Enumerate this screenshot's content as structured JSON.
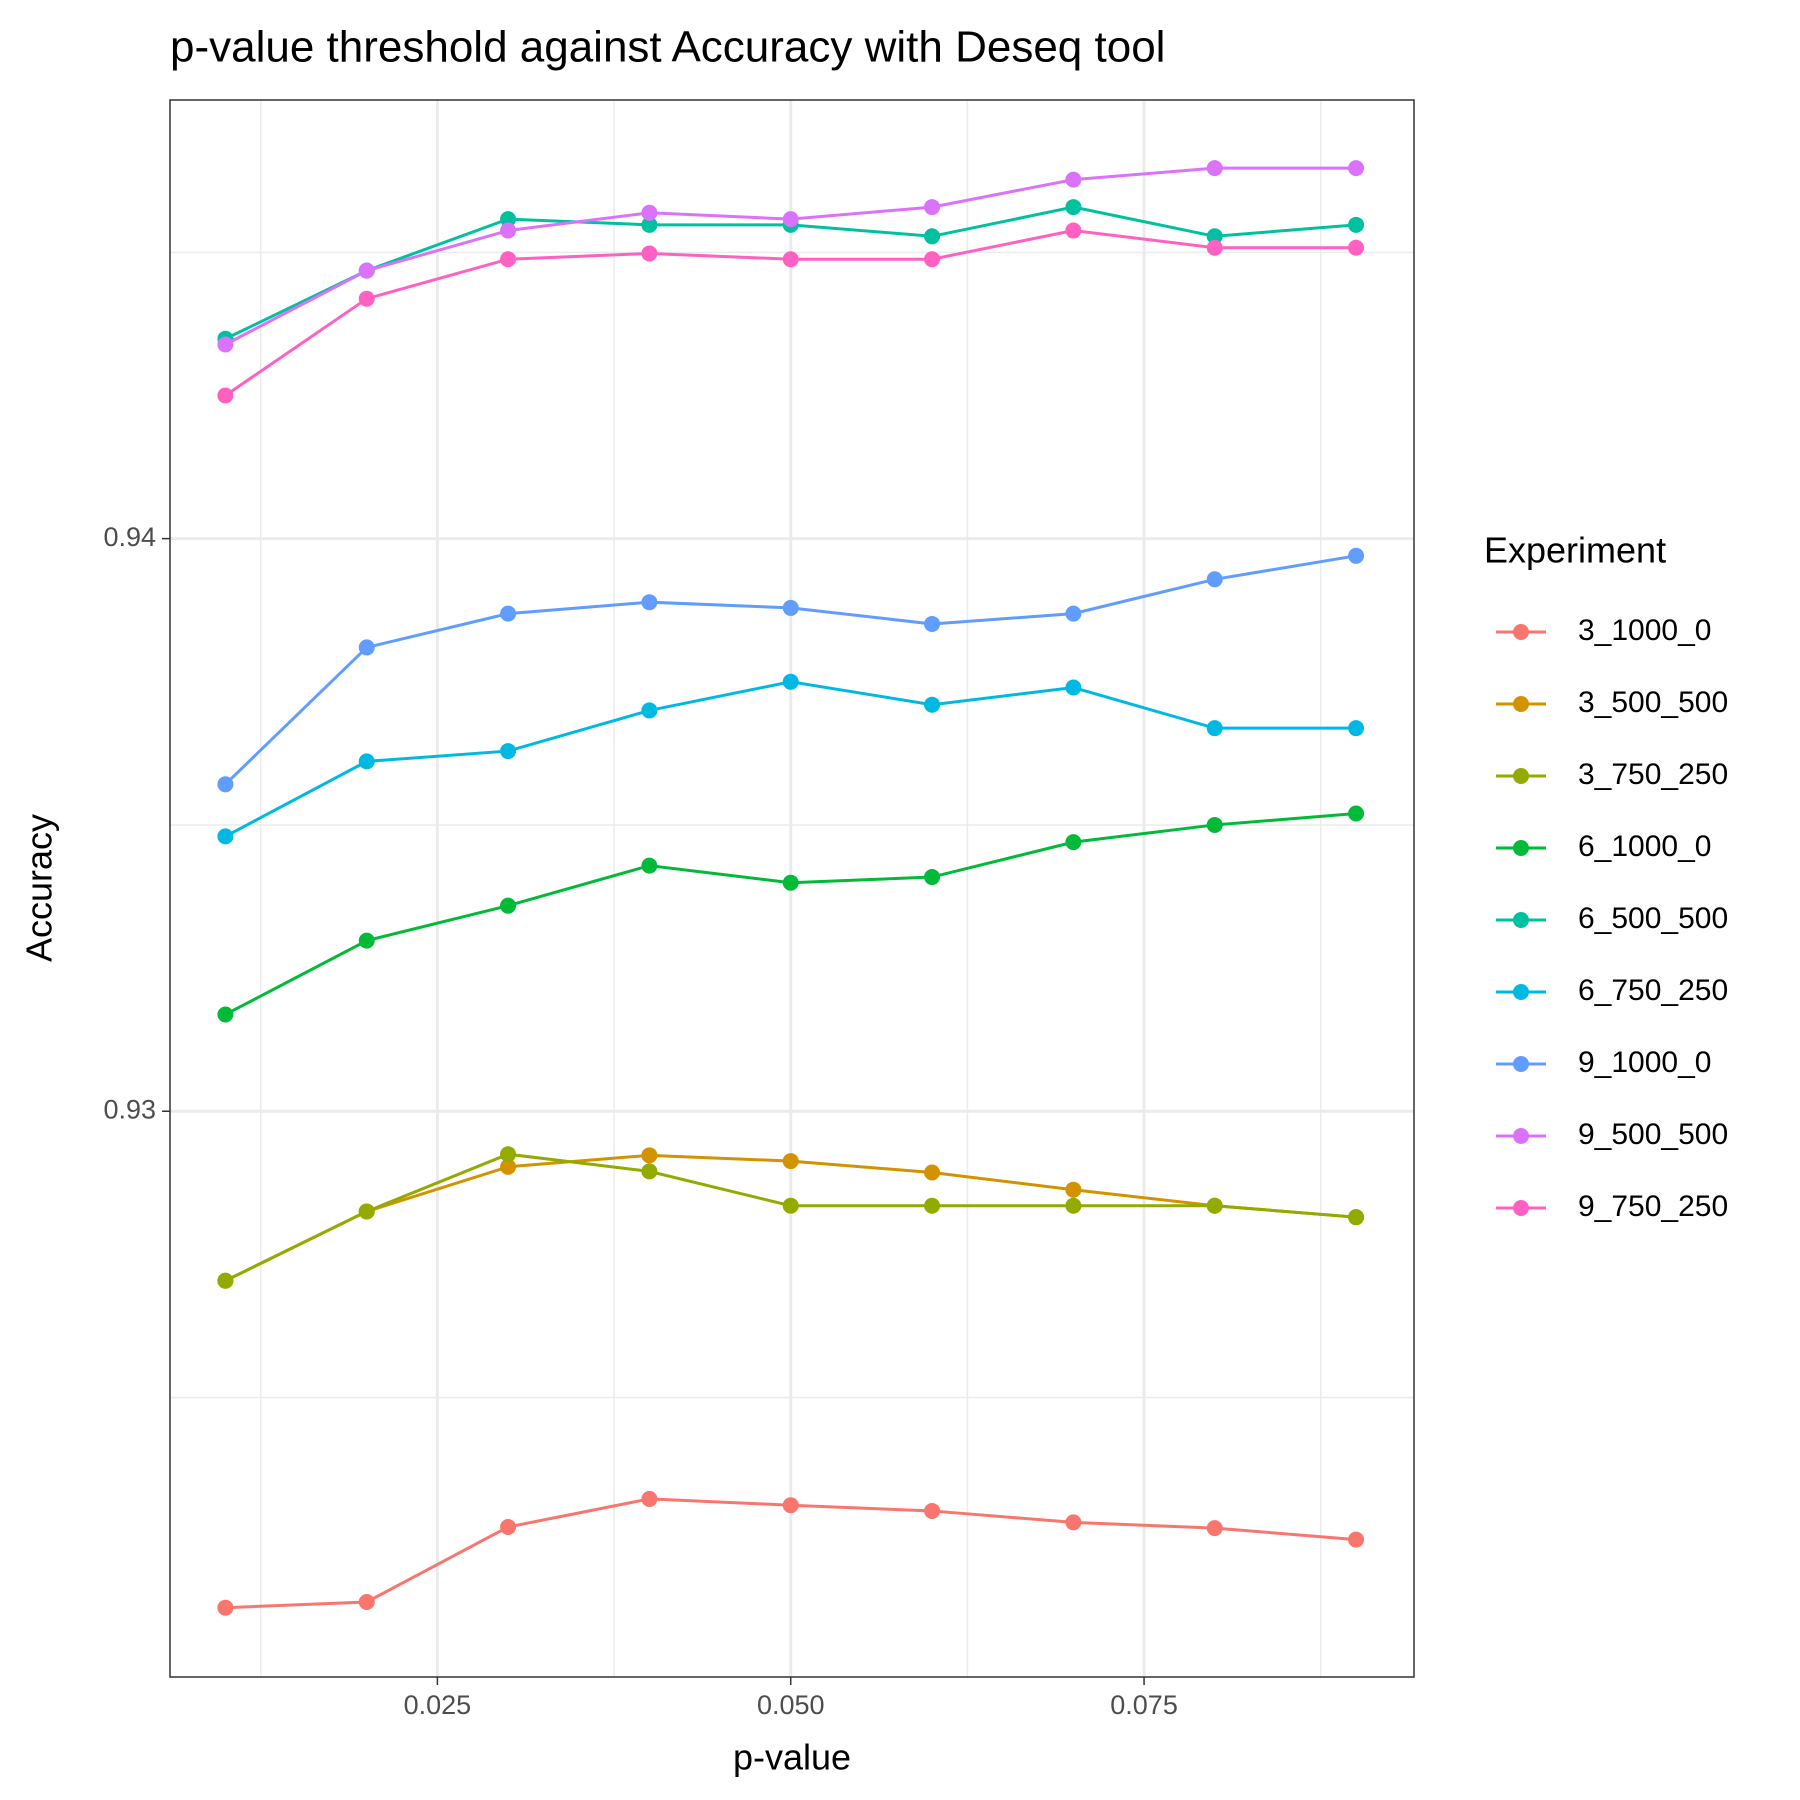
{
  "chart_data": {
    "type": "line",
    "title": "p-value threshold against Accuracy with Deseq tool",
    "x_label": "p-value",
    "y_label": "Accuracy",
    "legend_title": "Experiment",
    "legend_position": "right",
    "x": [
      0.01,
      0.02,
      0.03,
      0.04,
      0.05,
      0.06,
      0.07,
      0.08,
      0.09
    ],
    "xlim": [
      0.00608,
      0.0941
    ],
    "ylim": [
      0.92012,
      0.94766
    ],
    "xticks": [
      {
        "value": 0.025,
        "label": "0.025"
      },
      {
        "value": 0.05,
        "label": "0.050"
      },
      {
        "value": 0.075,
        "label": "0.075"
      }
    ],
    "yticks": [
      0.93,
      0.94
    ],
    "x_minor_grid": [
      0.0125,
      0.0375,
      0.0625,
      0.0875
    ],
    "y_minor_grid": [
      0.925,
      0.935,
      0.945
    ],
    "grid": true,
    "series": [
      {
        "name": "3_1000_0",
        "color": "#F8766D",
        "values": [
          0.92133,
          0.92143,
          0.92274,
          0.92323,
          0.92312,
          0.92302,
          0.92282,
          0.92272,
          0.92252
        ]
      },
      {
        "name": "3_500_500",
        "color": "#D39200",
        "values": [
          0.92704,
          0.92825,
          0.92903,
          0.92923,
          0.92913,
          0.92893,
          0.92863,
          0.92835,
          0.92815
        ]
      },
      {
        "name": "3_750_250",
        "color": "#93AA00",
        "values": [
          0.92704,
          0.92825,
          0.92925,
          0.92895,
          0.92835,
          0.92835,
          0.92835,
          0.92835,
          0.92815
        ]
      },
      {
        "name": "6_1000_0",
        "color": "#00BA38",
        "values": [
          0.93169,
          0.93298,
          0.93359,
          0.93429,
          0.93399,
          0.93409,
          0.9347,
          0.935,
          0.9352
        ]
      },
      {
        "name": "6_500_500",
        "color": "#00C19F",
        "values": [
          0.94349,
          0.94468,
          0.94558,
          0.94548,
          0.94548,
          0.94528,
          0.94579,
          0.94528,
          0.94548
        ]
      },
      {
        "name": "6_750_250",
        "color": "#00B9E3",
        "values": [
          0.9348,
          0.93611,
          0.93629,
          0.937,
          0.9375,
          0.9371,
          0.9374,
          0.93669,
          0.93669
        ]
      },
      {
        "name": "9_1000_0",
        "color": "#619CFF",
        "values": [
          0.93571,
          0.9381,
          0.93869,
          0.93889,
          0.93879,
          0.93851,
          0.93869,
          0.93929,
          0.9397
        ]
      },
      {
        "name": "9_500_500",
        "color": "#DB72FB",
        "values": [
          0.94339,
          0.94468,
          0.94538,
          0.94569,
          0.94558,
          0.94579,
          0.94627,
          0.94647,
          0.94647
        ]
      },
      {
        "name": "9_750_250",
        "color": "#FF61C3",
        "values": [
          0.9425,
          0.94419,
          0.94488,
          0.94498,
          0.94488,
          0.94488,
          0.94538,
          0.94508,
          0.94508
        ]
      }
    ]
  }
}
